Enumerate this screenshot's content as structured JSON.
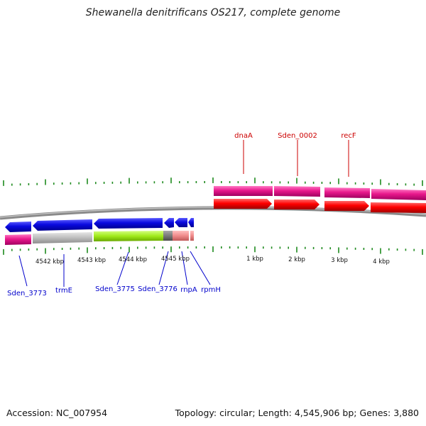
{
  "title": "Shewanella denitrificans OS217, complete genome",
  "footer": {
    "accession": "Accession: NC_007954",
    "topology": "Topology: circular;",
    "length": "Length: 4,545,906 bp;",
    "genes": "Genes: 3,880"
  },
  "colors": {
    "blue_gene": "#0a0ae0",
    "red_gene": "#ff0000",
    "magenta_gene": "#e8188c",
    "gray_gene": "#bdbdbd",
    "green_gene": "#a0ea1a",
    "dark_gene": "#7a7a7a",
    "salmon_gene": "#f08a8a",
    "tick_green": "#1e8a1e",
    "label_red": "#cc0000",
    "label_blue": "#0000cc"
  },
  "scale_labels": [
    {
      "text": "4542 kbp"
    },
    {
      "text": "4543 kbp"
    },
    {
      "text": "4544 kbp"
    },
    {
      "text": "4545 kbp"
    },
    {
      "text": "1 kbp"
    },
    {
      "text": "2 kbp"
    },
    {
      "text": "3 kbp"
    },
    {
      "text": "4 kbp"
    }
  ],
  "gene_labels_top": [
    {
      "text": "dnaA"
    },
    {
      "text": "Sden_0002"
    },
    {
      "text": "recF"
    }
  ],
  "gene_labels_bottom": [
    {
      "text": "Sden_3773"
    },
    {
      "text": "trmE"
    },
    {
      "text": "Sden_3775"
    },
    {
      "text": "Sden_3776"
    },
    {
      "text": "rnpA"
    },
    {
      "text": "rpmH"
    }
  ]
}
